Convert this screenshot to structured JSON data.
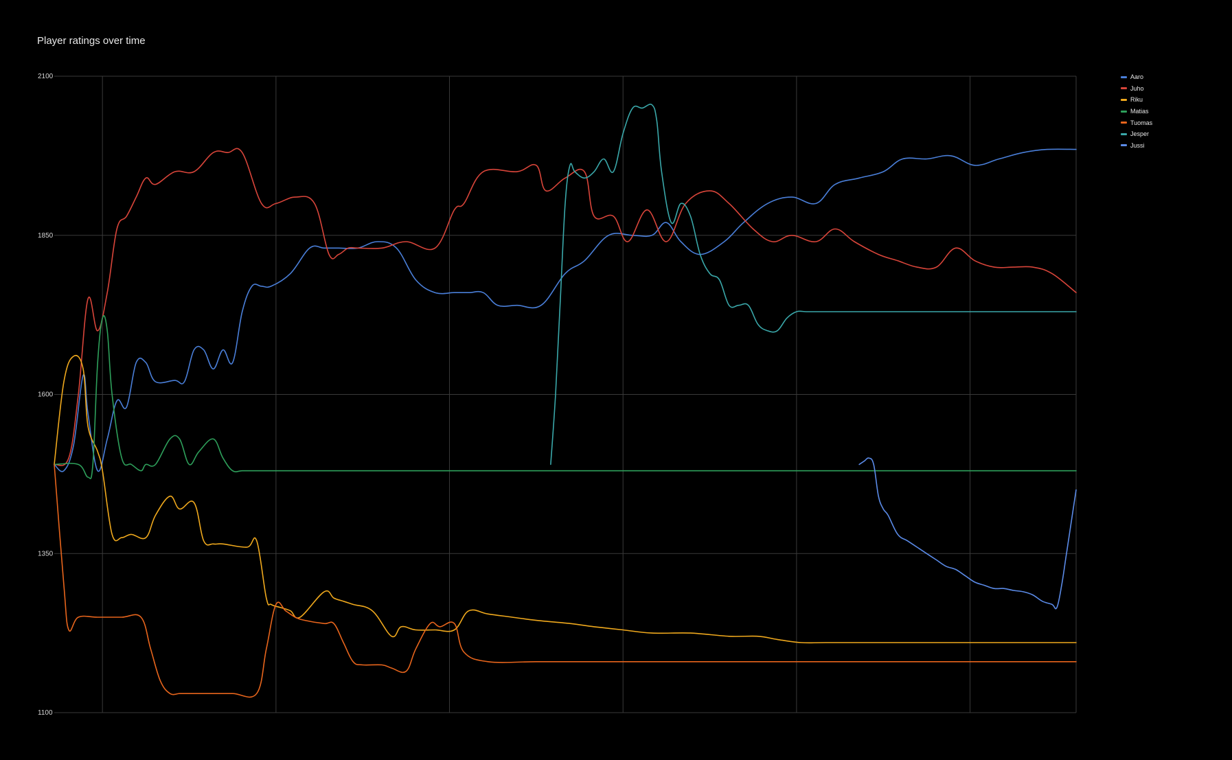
{
  "chart_data": {
    "type": "line",
    "title": "Player ratings over time",
    "xlabel": "",
    "ylabel": "",
    "ylim": [
      1100,
      2100
    ],
    "yticks": [
      1100,
      1350,
      1600,
      1850,
      2100
    ],
    "grid": true,
    "legend_position": "top-right",
    "x_range": [
      0,
      212
    ],
    "x_gridlines": [
      10,
      46,
      82,
      118,
      154,
      190
    ],
    "series": [
      {
        "name": "Aaro",
        "color": "#4a7fd9",
        "x": [
          0,
          2,
          4,
          6,
          7,
          9,
          11,
          13,
          15,
          17,
          19,
          21,
          25,
          27,
          29,
          31,
          33,
          35,
          37,
          39,
          41,
          43,
          45,
          49,
          53,
          56,
          59,
          63,
          67,
          71,
          75,
          79,
          83,
          86,
          89,
          92,
          96,
          101,
          106,
          110,
          115,
          120,
          124,
          127,
          130,
          134,
          139,
          143,
          148,
          153,
          158,
          162,
          167,
          172,
          176,
          181,
          186,
          191,
          196,
          201,
          206,
          212
        ],
        "y": [
          1490,
          1480,
          1520,
          1630,
          1570,
          1480,
          1530,
          1590,
          1580,
          1650,
          1650,
          1620,
          1622,
          1620,
          1670,
          1670,
          1640,
          1670,
          1650,
          1730,
          1770,
          1770,
          1770,
          1790,
          1830,
          1830,
          1830,
          1830,
          1840,
          1830,
          1780,
          1760,
          1760,
          1760,
          1760,
          1740,
          1740,
          1740,
          1790,
          1810,
          1850,
          1850,
          1850,
          1870,
          1840,
          1820,
          1840,
          1870,
          1900,
          1910,
          1900,
          1930,
          1940,
          1950,
          1970,
          1970,
          1975,
          1960,
          1970,
          1980,
          1985,
          1985
        ]
      },
      {
        "name": "Juho",
        "color": "#d9453a",
        "x": [
          0,
          3,
          5,
          7,
          9,
          11,
          13,
          15,
          17,
          19,
          21,
          25,
          29,
          33,
          36,
          39,
          43,
          46,
          50,
          54,
          57,
          59,
          61,
          63,
          68,
          73,
          79,
          83,
          85,
          89,
          96,
          100,
          102,
          106,
          110,
          112,
          116,
          119,
          123,
          127,
          131,
          136,
          140,
          145,
          149,
          153,
          158,
          162,
          166,
          171,
          175,
          179,
          183,
          187,
          191,
          195,
          199,
          203,
          207,
          212
        ],
        "y": [
          1490,
          1500,
          1600,
          1750,
          1700,
          1760,
          1860,
          1880,
          1910,
          1940,
          1930,
          1950,
          1950,
          1980,
          1980,
          1980,
          1900,
          1900,
          1910,
          1900,
          1820,
          1820,
          1830,
          1830,
          1830,
          1840,
          1830,
          1890,
          1900,
          1950,
          1950,
          1960,
          1920,
          1940,
          1950,
          1880,
          1880,
          1840,
          1890,
          1840,
          1900,
          1920,
          1900,
          1860,
          1840,
          1850,
          1840,
          1860,
          1840,
          1820,
          1810,
          1800,
          1800,
          1830,
          1810,
          1800,
          1800,
          1800,
          1790,
          1760
        ]
      },
      {
        "name": "Riku",
        "color": "#f0a91d",
        "x": [
          0,
          2,
          4,
          6,
          7,
          9,
          10,
          12,
          14,
          16,
          19,
          21,
          24,
          26,
          29,
          31,
          33,
          35,
          40,
          42,
          44,
          45,
          47,
          49,
          51,
          56,
          58,
          60,
          62,
          66,
          70,
          72,
          75,
          79,
          83,
          86,
          90,
          95,
          100,
          107,
          112,
          118,
          124,
          132,
          140,
          146,
          150,
          155,
          160,
          170,
          180,
          190,
          200,
          212
        ],
        "y": [
          1490,
          1620,
          1660,
          1640,
          1550,
          1510,
          1480,
          1380,
          1375,
          1380,
          1375,
          1410,
          1440,
          1420,
          1430,
          1370,
          1365,
          1365,
          1360,
          1370,
          1280,
          1270,
          1265,
          1260,
          1250,
          1290,
          1280,
          1275,
          1270,
          1260,
          1220,
          1235,
          1230,
          1230,
          1230,
          1260,
          1255,
          1250,
          1245,
          1240,
          1235,
          1230,
          1225,
          1225,
          1220,
          1220,
          1215,
          1210,
          1210,
          1210,
          1210,
          1210,
          1210,
          1210
        ]
      },
      {
        "name": "Matias",
        "color": "#2ea05b",
        "x": [
          0,
          5,
          7,
          8,
          9,
          10,
          11,
          12,
          14,
          16,
          18,
          19,
          21,
          24,
          26,
          28,
          30,
          33,
          35,
          37,
          39,
          42,
          45,
          60,
          80,
          100,
          120,
          140,
          160,
          180,
          200,
          212
        ],
        "y": [
          1490,
          1490,
          1470,
          1490,
          1650,
          1720,
          1700,
          1600,
          1500,
          1490,
          1480,
          1490,
          1490,
          1530,
          1530,
          1490,
          1510,
          1530,
          1500,
          1480,
          1480,
          1480,
          1480,
          1480,
          1480,
          1480,
          1480,
          1480,
          1480,
          1480,
          1480,
          1480
        ]
      },
      {
        "name": "Tuomas",
        "color": "#e8651c",
        "x": [
          0,
          2,
          3,
          5,
          9,
          14,
          18,
          20,
          22,
          24,
          26,
          28,
          32,
          37,
          42,
          44,
          46,
          48,
          50,
          52,
          56,
          58,
          60,
          62,
          64,
          68,
          70,
          73,
          75,
          78,
          80,
          83,
          85,
          90,
          100,
          110,
          130,
          150,
          170,
          190,
          212
        ],
        "y": [
          1490,
          1300,
          1230,
          1250,
          1250,
          1250,
          1250,
          1200,
          1150,
          1130,
          1130,
          1130,
          1130,
          1130,
          1130,
          1200,
          1270,
          1260,
          1250,
          1245,
          1240,
          1240,
          1210,
          1180,
          1175,
          1175,
          1170,
          1165,
          1200,
          1240,
          1235,
          1240,
          1195,
          1180,
          1180,
          1180,
          1180,
          1180,
          1180,
          1180,
          1180
        ]
      },
      {
        "name": "Jesper",
        "color": "#3aa8aa",
        "x": [
          103,
          104,
          105,
          106,
          107,
          108,
          110,
          112,
          114,
          116,
          118,
          120,
          122,
          124,
          125,
          126,
          128,
          130,
          132,
          134,
          136,
          138,
          140,
          142,
          144,
          146,
          148,
          150,
          152,
          154,
          156,
          158,
          160,
          162,
          164,
          166,
          168,
          170,
          172,
          174,
          180,
          190,
          200,
          212
        ],
        "y": [
          1490,
          1600,
          1750,
          1900,
          1960,
          1950,
          1940,
          1950,
          1970,
          1950,
          2010,
          2050,
          2050,
          2055,
          2030,
          1950,
          1870,
          1900,
          1880,
          1820,
          1790,
          1780,
          1740,
          1740,
          1740,
          1710,
          1700,
          1700,
          1720,
          1730,
          1730,
          1730,
          1730,
          1730,
          1730,
          1730,
          1730,
          1730,
          1730,
          1730,
          1730,
          1730,
          1730,
          1730
        ]
      },
      {
        "name": "Jussi",
        "color": "#5b8be8",
        "x": [
          167,
          168,
          169,
          170,
          171,
          172,
          173,
          175,
          177,
          179,
          181,
          183,
          185,
          187,
          189,
          191,
          193,
          195,
          197,
          199,
          201,
          203,
          205,
          207,
          208,
          209,
          210,
          211,
          212
        ],
        "y": [
          1490,
          1495,
          1500,
          1490,
          1440,
          1420,
          1410,
          1380,
          1370,
          1360,
          1350,
          1340,
          1330,
          1325,
          1315,
          1305,
          1300,
          1295,
          1295,
          1292,
          1290,
          1285,
          1275,
          1270,
          1265,
          1300,
          1350,
          1400,
          1450
        ]
      }
    ]
  }
}
